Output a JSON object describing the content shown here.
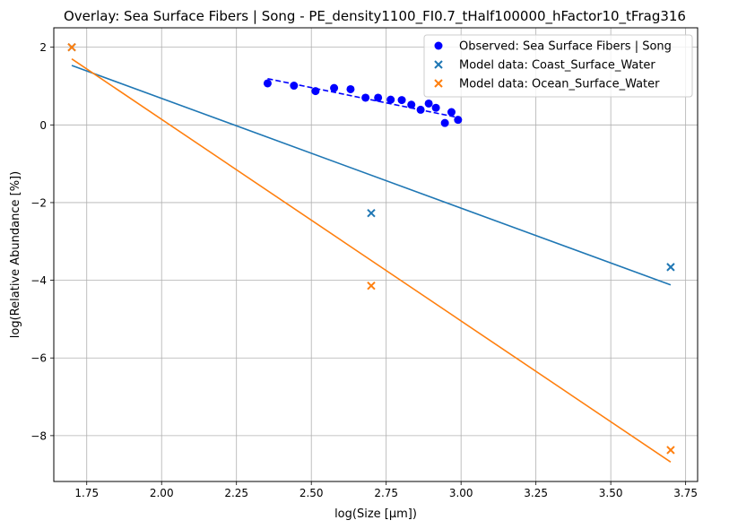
{
  "chart_data": {
    "type": "scatter",
    "title": "Overlay: Sea Surface Fibers | Song - PE_density1100_FI0.7_tHalf100000_hFactor10_tFrag316",
    "xlabel": "log(Size [μm])",
    "ylabel": "log(Relative Abundance [%])",
    "xlim": [
      1.64,
      3.79
    ],
    "ylim": [
      -9.18,
      2.5
    ],
    "xticks": [
      1.75,
      2.0,
      2.25,
      2.5,
      2.75,
      3.0,
      3.25,
      3.5,
      3.75
    ],
    "xtick_labels": [
      "1.75",
      "2.00",
      "2.25",
      "2.50",
      "2.75",
      "3.00",
      "3.25",
      "3.50",
      "3.75"
    ],
    "yticks": [
      2,
      0,
      -2,
      -4,
      -6,
      -8
    ],
    "ytick_labels": [
      "2",
      "0",
      "−2",
      "−4",
      "−6",
      "−8"
    ],
    "grid": true,
    "legend_position": "top-right",
    "series": [
      {
        "name": "Observed: Sea Surface Fibers | Song",
        "kind": "scatter-circle",
        "color": "#0000ff",
        "points": [
          [
            2.354,
            1.07
          ],
          [
            2.442,
            1.01
          ],
          [
            2.514,
            0.87
          ],
          [
            2.576,
            0.95
          ],
          [
            2.631,
            0.92
          ],
          [
            2.681,
            0.7
          ],
          [
            2.723,
            0.7
          ],
          [
            2.765,
            0.65
          ],
          [
            2.802,
            0.64
          ],
          [
            2.834,
            0.52
          ],
          [
            2.865,
            0.39
          ],
          [
            2.892,
            0.55
          ],
          [
            2.916,
            0.44
          ],
          [
            2.946,
            0.05
          ],
          [
            2.968,
            0.33
          ],
          [
            2.99,
            0.13
          ]
        ]
      },
      {
        "name": "Model data: Coast_Surface_Water",
        "kind": "scatter-x",
        "color": "#1f77b4",
        "points": [
          [
            1.7,
            2.0
          ],
          [
            2.7,
            -2.27
          ],
          [
            3.7,
            -3.66
          ]
        ]
      },
      {
        "name": "Model data: Ocean_Surface_Water",
        "kind": "scatter-x",
        "color": "#ff7f0e",
        "points": [
          [
            1.7,
            2.0
          ],
          [
            2.7,
            -4.14
          ],
          [
            3.7,
            -8.37
          ]
        ]
      }
    ],
    "fit_lines": [
      {
        "color": "#0000ff",
        "dashed": true,
        "points": [
          [
            2.354,
            1.19
          ],
          [
            2.99,
            0.19
          ]
        ]
      },
      {
        "color": "#1f77b4",
        "dashed": false,
        "points": [
          [
            1.7,
            1.53
          ],
          [
            3.7,
            -4.12
          ]
        ]
      },
      {
        "color": "#ff7f0e",
        "dashed": false,
        "points": [
          [
            1.7,
            1.7
          ],
          [
            3.7,
            -8.68
          ]
        ]
      }
    ]
  }
}
